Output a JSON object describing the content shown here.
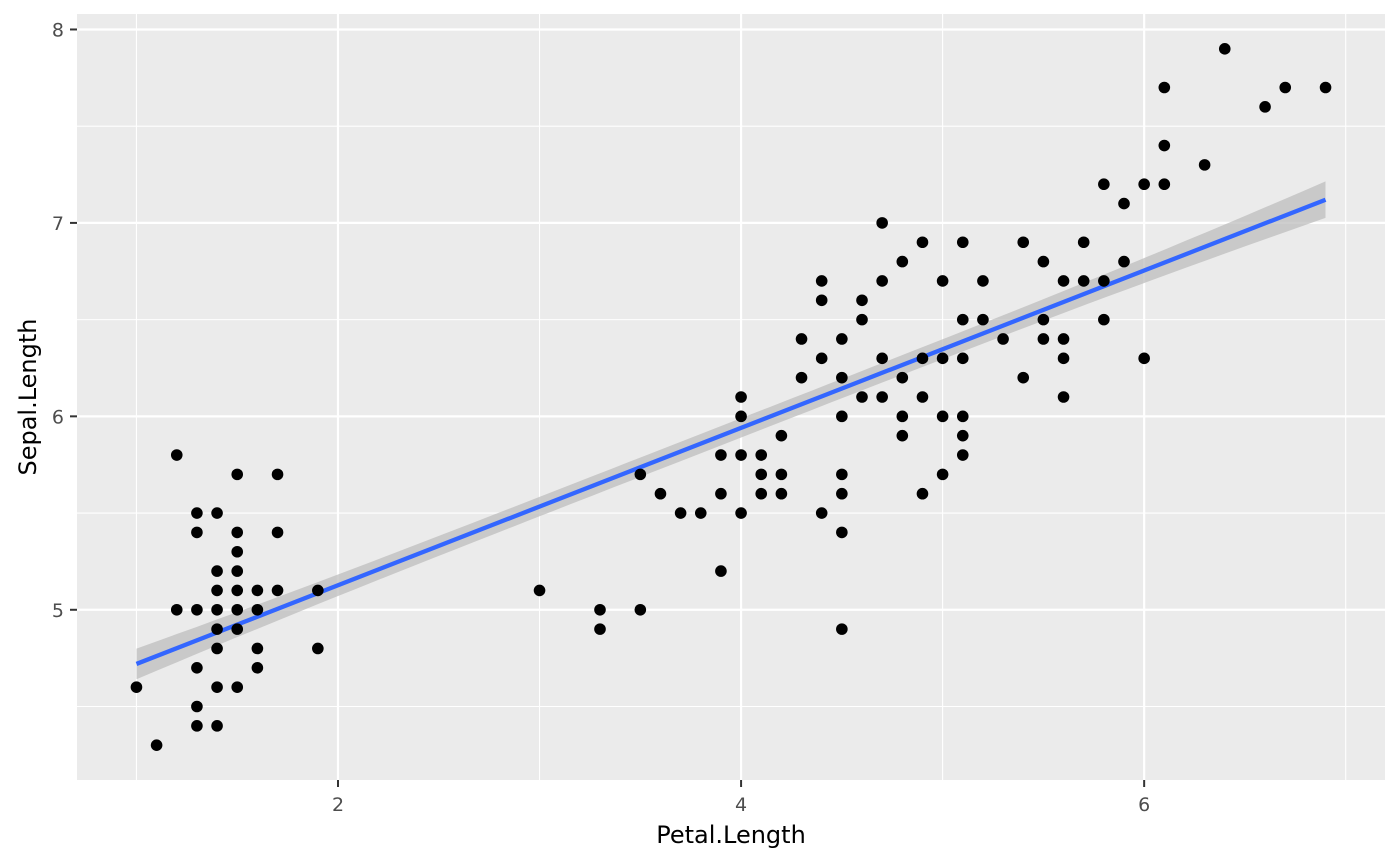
{
  "chart_data": {
    "type": "scatter",
    "title": "",
    "xlabel": "Petal.Length",
    "ylabel": "Sepal.Length",
    "xlim": [
      0.705,
      7.195
    ],
    "ylim": [
      4.12,
      8.08
    ],
    "x_ticks": [
      2,
      4,
      6
    ],
    "x_tick_labels": [
      "2",
      "4",
      "6"
    ],
    "y_ticks": [
      5,
      6,
      7,
      8
    ],
    "y_tick_labels": [
      "5",
      "6",
      "7",
      "8"
    ],
    "grid": true,
    "legend": "none",
    "point_color": "#000000",
    "panel_background": "#ebebeb",
    "smooth": {
      "method": "lm",
      "color": "#3366ff",
      "band_color": "#bebebe",
      "x_start": 1.0,
      "y_start": 4.72,
      "x_end": 6.9,
      "y_end": 7.12,
      "band_halfwidth_end_low": 0.11,
      "band_halfwidth_end_high": 0.13
    },
    "points": [
      [
        1.0,
        4.6
      ],
      [
        1.1,
        4.3
      ],
      [
        1.2,
        5.8
      ],
      [
        1.2,
        5.0
      ],
      [
        1.3,
        5.5
      ],
      [
        1.3,
        5.4
      ],
      [
        1.3,
        5.0
      ],
      [
        1.3,
        4.7
      ],
      [
        1.3,
        4.5
      ],
      [
        1.3,
        4.4
      ],
      [
        1.4,
        5.5
      ],
      [
        1.4,
        5.2
      ],
      [
        1.4,
        5.1
      ],
      [
        1.4,
        5.0
      ],
      [
        1.4,
        4.9
      ],
      [
        1.4,
        4.8
      ],
      [
        1.4,
        4.6
      ],
      [
        1.4,
        4.4
      ],
      [
        1.5,
        5.7
      ],
      [
        1.5,
        5.4
      ],
      [
        1.5,
        5.3
      ],
      [
        1.5,
        5.2
      ],
      [
        1.5,
        5.1
      ],
      [
        1.5,
        5.0
      ],
      [
        1.5,
        4.9
      ],
      [
        1.5,
        4.6
      ],
      [
        1.6,
        5.1
      ],
      [
        1.6,
        5.0
      ],
      [
        1.6,
        4.8
      ],
      [
        1.6,
        4.7
      ],
      [
        1.7,
        5.7
      ],
      [
        1.7,
        5.4
      ],
      [
        1.7,
        5.1
      ],
      [
        1.9,
        5.1
      ],
      [
        1.9,
        4.8
      ],
      [
        3.0,
        5.1
      ],
      [
        3.3,
        5.0
      ],
      [
        3.3,
        4.9
      ],
      [
        3.5,
        5.7
      ],
      [
        3.5,
        5.0
      ],
      [
        3.6,
        5.6
      ],
      [
        3.7,
        5.5
      ],
      [
        3.8,
        5.5
      ],
      [
        3.9,
        5.8
      ],
      [
        3.9,
        5.6
      ],
      [
        3.9,
        5.2
      ],
      [
        4.0,
        6.1
      ],
      [
        4.0,
        6.0
      ],
      [
        4.0,
        5.8
      ],
      [
        4.0,
        5.5
      ],
      [
        4.1,
        5.8
      ],
      [
        4.1,
        5.7
      ],
      [
        4.1,
        5.6
      ],
      [
        4.2,
        5.9
      ],
      [
        4.2,
        5.7
      ],
      [
        4.2,
        5.6
      ],
      [
        4.3,
        6.4
      ],
      [
        4.3,
        6.2
      ],
      [
        4.4,
        6.7
      ],
      [
        4.4,
        6.6
      ],
      [
        4.4,
        6.3
      ],
      [
        4.4,
        5.5
      ],
      [
        4.5,
        6.4
      ],
      [
        4.5,
        6.2
      ],
      [
        4.5,
        6.0
      ],
      [
        4.5,
        5.7
      ],
      [
        4.5,
        5.6
      ],
      [
        4.5,
        5.4
      ],
      [
        4.5,
        4.9
      ],
      [
        4.6,
        6.6
      ],
      [
        4.6,
        6.5
      ],
      [
        4.6,
        6.1
      ],
      [
        4.7,
        7.0
      ],
      [
        4.7,
        6.7
      ],
      [
        4.7,
        6.3
      ],
      [
        4.7,
        6.1
      ],
      [
        4.8,
        6.8
      ],
      [
        4.8,
        6.2
      ],
      [
        4.8,
        6.0
      ],
      [
        4.8,
        5.9
      ],
      [
        4.9,
        6.9
      ],
      [
        4.9,
        6.3
      ],
      [
        4.9,
        6.1
      ],
      [
        4.9,
        5.6
      ],
      [
        5.0,
        6.7
      ],
      [
        5.0,
        6.3
      ],
      [
        5.0,
        6.0
      ],
      [
        5.0,
        5.7
      ],
      [
        5.1,
        6.9
      ],
      [
        5.1,
        6.5
      ],
      [
        5.1,
        6.3
      ],
      [
        5.1,
        6.0
      ],
      [
        5.1,
        5.9
      ],
      [
        5.1,
        5.8
      ],
      [
        5.2,
        6.7
      ],
      [
        5.2,
        6.5
      ],
      [
        5.3,
        6.4
      ],
      [
        5.4,
        6.9
      ],
      [
        5.4,
        6.2
      ],
      [
        5.5,
        6.8
      ],
      [
        5.5,
        6.5
      ],
      [
        5.5,
        6.4
      ],
      [
        5.6,
        6.7
      ],
      [
        5.6,
        6.4
      ],
      [
        5.6,
        6.3
      ],
      [
        5.6,
        6.1
      ],
      [
        5.7,
        6.9
      ],
      [
        5.7,
        6.7
      ],
      [
        5.8,
        7.2
      ],
      [
        5.8,
        6.7
      ],
      [
        5.8,
        6.5
      ],
      [
        5.9,
        7.1
      ],
      [
        5.9,
        6.8
      ],
      [
        6.0,
        7.2
      ],
      [
        6.0,
        6.3
      ],
      [
        6.1,
        7.7
      ],
      [
        6.1,
        7.4
      ],
      [
        6.1,
        7.2
      ],
      [
        6.3,
        7.3
      ],
      [
        6.4,
        7.9
      ],
      [
        6.6,
        7.6
      ],
      [
        6.7,
        7.7
      ],
      [
        6.9,
        7.7
      ]
    ]
  }
}
